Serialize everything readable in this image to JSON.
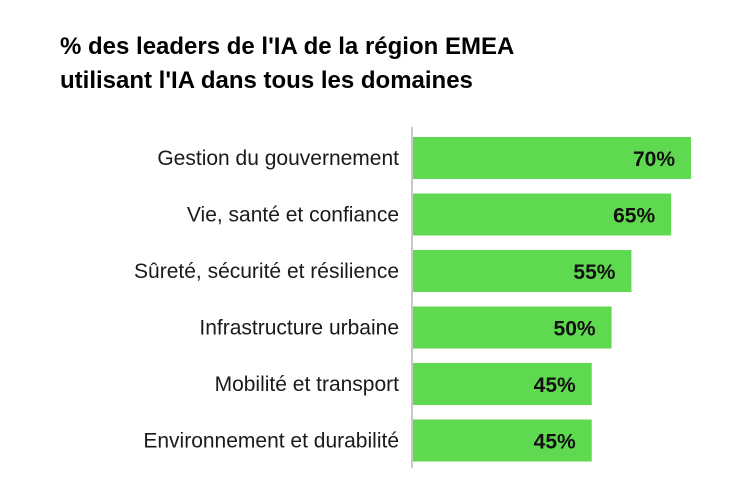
{
  "title": {
    "line1": "% des leaders de l'IA de la région EMEA",
    "line2": "utilisant l'IA dans tous les domaines"
  },
  "colors": {
    "bar": "#5FD94F",
    "axis": "#C8C8C8",
    "text": "#1A1A1A"
  },
  "chart_data": {
    "type": "bar",
    "orientation": "horizontal",
    "title": "% des leaders de l'IA de la région EMEA utilisant l'IA dans tous les domaines",
    "categories": [
      "Gestion du gouvernement",
      "Vie, santé et confiance",
      "Sûreté, sécurité et résilience",
      "Infrastructure urbaine",
      "Mobilité et transport",
      "Environnement et durabilité"
    ],
    "values": [
      70,
      65,
      55,
      50,
      45,
      45
    ],
    "value_labels": [
      "70%",
      "65%",
      "55%",
      "50%",
      "45%",
      "45%"
    ],
    "xlim": [
      0,
      100
    ],
    "xlabel": "",
    "ylabel": "",
    "grid": false
  }
}
